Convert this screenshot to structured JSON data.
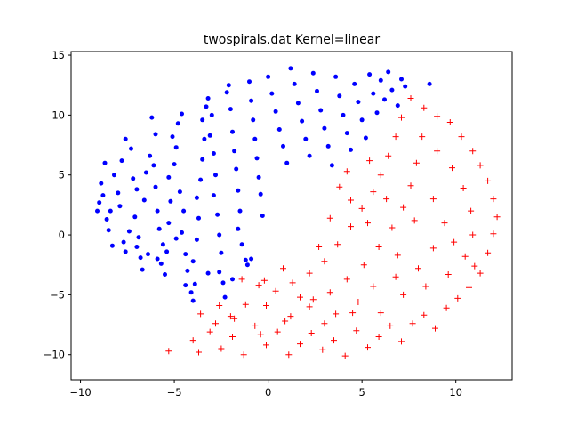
{
  "chart_data": {
    "type": "scatter",
    "title": "twospirals.dat Kernel=linear",
    "xlabel": "",
    "ylabel": "",
    "xlim": [
      -10.5,
      13.0
    ],
    "ylim": [
      -12.1,
      15.3
    ],
    "xticks": [
      -10,
      -5,
      0,
      5,
      10
    ],
    "yticks": [
      -10,
      -5,
      0,
      5,
      10,
      15
    ],
    "grid": false,
    "series": [
      {
        "marker": "dot",
        "color": "#0000ff",
        "points": [
          [
            -9.1,
            2.0
          ],
          [
            -9.0,
            2.7
          ],
          [
            -8.8,
            3.3
          ],
          [
            -8.9,
            4.3
          ],
          [
            -8.7,
            6.0
          ],
          [
            -8.6,
            1.3
          ],
          [
            -8.5,
            0.4
          ],
          [
            -8.3,
            -0.9
          ],
          [
            -8.4,
            2.0
          ],
          [
            -8.2,
            5.0
          ],
          [
            -8.0,
            3.5
          ],
          [
            -7.9,
            2.4
          ],
          [
            -7.7,
            -0.6
          ],
          [
            -7.6,
            -1.4
          ],
          [
            -7.8,
            6.2
          ],
          [
            -7.6,
            8.0
          ],
          [
            -7.3,
            7.2
          ],
          [
            -7.2,
            4.7
          ],
          [
            -7.0,
            3.8
          ],
          [
            -7.1,
            1.5
          ],
          [
            -7.0,
            -1.0
          ],
          [
            -6.8,
            -1.9
          ],
          [
            -6.7,
            -2.9
          ],
          [
            -6.9,
            -0.2
          ],
          [
            -6.6,
            2.9
          ],
          [
            -6.5,
            5.2
          ],
          [
            -6.3,
            6.6
          ],
          [
            -6.2,
            9.8
          ],
          [
            -6.0,
            8.4
          ],
          [
            -6.1,
            5.8
          ],
          [
            -6.0,
            4.0
          ],
          [
            -5.9,
            2.0
          ],
          [
            -5.8,
            0.5
          ],
          [
            -5.6,
            -0.8
          ],
          [
            -5.7,
            -2.4
          ],
          [
            -5.5,
            -3.3
          ],
          [
            -5.4,
            -1.4
          ],
          [
            -5.3,
            1.0
          ],
          [
            -5.2,
            2.8
          ],
          [
            -5.3,
            4.8
          ],
          [
            -5.0,
            5.9
          ],
          [
            -4.9,
            7.3
          ],
          [
            -5.1,
            8.2
          ],
          [
            -4.8,
            9.3
          ],
          [
            -4.6,
            10.1
          ],
          [
            -4.7,
            3.6
          ],
          [
            -4.5,
            2.0
          ],
          [
            -4.6,
            0.2
          ],
          [
            -4.4,
            -1.6
          ],
          [
            -4.3,
            -3.0
          ],
          [
            -4.4,
            -4.2
          ],
          [
            -4.1,
            -4.8
          ],
          [
            -4.0,
            -5.5
          ],
          [
            -3.9,
            -4.1
          ],
          [
            -4.0,
            -2.2
          ],
          [
            -3.8,
            -0.4
          ],
          [
            -3.7,
            1.4
          ],
          [
            -3.8,
            3.1
          ],
          [
            -3.6,
            4.6
          ],
          [
            -3.5,
            6.3
          ],
          [
            -3.4,
            8.0
          ],
          [
            -3.5,
            9.6
          ],
          [
            -3.3,
            10.7
          ],
          [
            -3.2,
            11.4
          ],
          [
            -3.0,
            10.0
          ],
          [
            -3.1,
            8.3
          ],
          [
            -2.9,
            6.8
          ],
          [
            -2.8,
            5.0
          ],
          [
            -2.9,
            3.3
          ],
          [
            -2.7,
            1.7
          ],
          [
            -2.6,
            0.0
          ],
          [
            -2.5,
            -1.5
          ],
          [
            -2.6,
            -3.1
          ],
          [
            -2.4,
            -4.0
          ],
          [
            -2.3,
            -5.2
          ],
          [
            -2.2,
            11.9
          ],
          [
            -2.1,
            12.5
          ],
          [
            -2.0,
            10.5
          ],
          [
            -1.9,
            8.6
          ],
          [
            -1.8,
            7.0
          ],
          [
            -1.7,
            5.5
          ],
          [
            -1.6,
            3.7
          ],
          [
            -1.5,
            2.0
          ],
          [
            -1.6,
            0.5
          ],
          [
            -1.4,
            -0.8
          ],
          [
            -1.2,
            -2.1
          ],
          [
            -1.1,
            -2.5
          ],
          [
            -1.0,
            12.8
          ],
          [
            -0.9,
            11.2
          ],
          [
            -0.8,
            9.6
          ],
          [
            -0.7,
            8.0
          ],
          [
            -0.6,
            6.4
          ],
          [
            -0.5,
            4.8
          ],
          [
            -0.4,
            3.4
          ],
          [
            -0.3,
            1.6
          ],
          [
            0.0,
            13.2
          ],
          [
            0.2,
            11.8
          ],
          [
            0.4,
            10.3
          ],
          [
            0.6,
            8.8
          ],
          [
            0.8,
            7.4
          ],
          [
            1.0,
            6.0
          ],
          [
            1.2,
            13.9
          ],
          [
            1.4,
            12.6
          ],
          [
            1.6,
            11.0
          ],
          [
            1.8,
            9.5
          ],
          [
            2.0,
            8.0
          ],
          [
            2.2,
            6.6
          ],
          [
            2.4,
            13.5
          ],
          [
            2.6,
            12.0
          ],
          [
            2.8,
            10.4
          ],
          [
            3.0,
            8.9
          ],
          [
            3.2,
            7.4
          ],
          [
            3.4,
            5.8
          ],
          [
            3.6,
            13.2
          ],
          [
            3.8,
            11.6
          ],
          [
            4.0,
            10.0
          ],
          [
            4.2,
            8.5
          ],
          [
            4.4,
            7.1
          ],
          [
            4.6,
            12.6
          ],
          [
            4.8,
            11.1
          ],
          [
            5.0,
            9.6
          ],
          [
            5.2,
            8.1
          ],
          [
            5.4,
            13.4
          ],
          [
            5.6,
            11.8
          ],
          [
            5.8,
            10.2
          ],
          [
            6.0,
            12.9
          ],
          [
            6.2,
            11.3
          ],
          [
            6.4,
            13.6
          ],
          [
            6.6,
            12.1
          ],
          [
            6.9,
            10.8
          ],
          [
            7.1,
            13.0
          ],
          [
            7.3,
            12.4
          ],
          [
            8.6,
            12.6
          ],
          [
            -6.4,
            -1.6
          ],
          [
            -7.4,
            0.3
          ],
          [
            -5.9,
            -2.0
          ],
          [
            -3.2,
            -3.2
          ],
          [
            -1.9,
            -3.7
          ],
          [
            -0.9,
            -2.0
          ],
          [
            -4.9,
            -0.3
          ]
        ]
      },
      {
        "marker": "plus",
        "color": "#ff0000",
        "points": [
          [
            -5.3,
            -9.7
          ],
          [
            -4.0,
            -8.8
          ],
          [
            -3.7,
            -9.8
          ],
          [
            -3.1,
            -8.1
          ],
          [
            -2.5,
            -9.5
          ],
          [
            -1.9,
            -8.5
          ],
          [
            -1.3,
            -10.0
          ],
          [
            -0.7,
            -7.6
          ],
          [
            -0.1,
            -9.2
          ],
          [
            0.5,
            -8.1
          ],
          [
            1.1,
            -10.0
          ],
          [
            1.7,
            -9.1
          ],
          [
            2.3,
            -8.2
          ],
          [
            2.9,
            -9.6
          ],
          [
            3.5,
            -8.8
          ],
          [
            4.1,
            -10.1
          ],
          [
            4.7,
            -8.0
          ],
          [
            5.3,
            -9.4
          ],
          [
            5.9,
            -8.5
          ],
          [
            6.5,
            -7.6
          ],
          [
            7.1,
            -8.9
          ],
          [
            7.7,
            -7.4
          ],
          [
            8.3,
            -6.7
          ],
          [
            8.9,
            -7.8
          ],
          [
            9.5,
            -6.1
          ],
          [
            10.1,
            -5.3
          ],
          [
            10.7,
            -4.4
          ],
          [
            11.3,
            -3.2
          ],
          [
            11.7,
            -1.5
          ],
          [
            12.0,
            0.1
          ],
          [
            12.2,
            1.5
          ],
          [
            12.0,
            3.0
          ],
          [
            11.7,
            4.5
          ],
          [
            11.3,
            5.8
          ],
          [
            10.9,
            7.0
          ],
          [
            10.3,
            8.2
          ],
          [
            9.7,
            9.4
          ],
          [
            9.0,
            9.9
          ],
          [
            8.3,
            10.6
          ],
          [
            7.6,
            11.4
          ],
          [
            7.1,
            9.8
          ],
          [
            6.8,
            8.2
          ],
          [
            6.4,
            6.6
          ],
          [
            6.0,
            5.0
          ],
          [
            5.6,
            3.6
          ],
          [
            5.0,
            2.2
          ],
          [
            4.4,
            0.7
          ],
          [
            3.7,
            -0.8
          ],
          [
            3.0,
            -2.2
          ],
          [
            2.2,
            -3.2
          ],
          [
            1.3,
            -4.0
          ],
          [
            0.4,
            -4.7
          ],
          [
            -0.5,
            -4.2
          ],
          [
            -1.2,
            -5.8
          ],
          [
            -2.0,
            -6.8
          ],
          [
            -2.8,
            -7.4
          ],
          [
            -3.6,
            -6.6
          ],
          [
            -1.4,
            -3.7
          ],
          [
            -0.1,
            -5.9
          ],
          [
            1.2,
            -6.8
          ],
          [
            2.4,
            -5.4
          ],
          [
            3.6,
            -6.6
          ],
          [
            4.8,
            -5.6
          ],
          [
            6.0,
            -6.5
          ],
          [
            7.2,
            -5.0
          ],
          [
            8.4,
            -4.3
          ],
          [
            9.6,
            -3.3
          ],
          [
            10.5,
            -1.8
          ],
          [
            10.9,
            0.0
          ],
          [
            10.8,
            2.0
          ],
          [
            10.4,
            3.9
          ],
          [
            9.8,
            5.6
          ],
          [
            9.0,
            7.0
          ],
          [
            8.2,
            8.2
          ],
          [
            7.9,
            6.0
          ],
          [
            7.6,
            4.1
          ],
          [
            7.2,
            2.3
          ],
          [
            6.6,
            0.6
          ],
          [
            5.9,
            -1.0
          ],
          [
            5.1,
            -2.5
          ],
          [
            4.2,
            -3.7
          ],
          [
            3.3,
            -4.8
          ],
          [
            2.2,
            -6.0
          ],
          [
            0.9,
            -7.2
          ],
          [
            -0.4,
            -8.3
          ],
          [
            -1.8,
            -7.0
          ],
          [
            -2.6,
            -5.9
          ],
          [
            3.8,
            4.0
          ],
          [
            4.2,
            5.3
          ],
          [
            5.4,
            6.2
          ],
          [
            6.3,
            3.0
          ],
          [
            8.8,
            3.0
          ],
          [
            9.4,
            1.0
          ],
          [
            8.8,
            -1.1
          ],
          [
            8.0,
            -2.8
          ],
          [
            6.8,
            -3.5
          ],
          [
            5.6,
            -4.3
          ],
          [
            4.5,
            -6.5
          ],
          [
            3.0,
            -7.4
          ],
          [
            1.7,
            -5.2
          ],
          [
            0.8,
            -2.8
          ],
          [
            -0.2,
            -3.8
          ],
          [
            2.7,
            -1.0
          ],
          [
            3.3,
            1.4
          ],
          [
            4.4,
            2.9
          ],
          [
            5.3,
            1.0
          ],
          [
            6.9,
            -1.7
          ],
          [
            7.8,
            1.2
          ],
          [
            9.9,
            -0.6
          ],
          [
            11.0,
            -2.6
          ]
        ]
      }
    ]
  }
}
